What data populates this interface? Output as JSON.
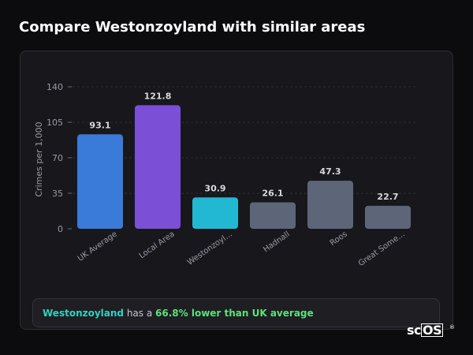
{
  "header": {
    "title": "Compare Westonzoyland with similar areas"
  },
  "chart_data": {
    "type": "bar",
    "ylabel": "Crimes per 1,000",
    "xlabel": "",
    "ylim": [
      0,
      140
    ],
    "yticks": [
      0,
      35,
      70,
      105,
      140
    ],
    "grid": true,
    "categories": [
      "UK Average",
      "Local Area",
      "Westonzoyl...",
      "Hadnall",
      "Roos",
      "Great Some..."
    ],
    "values": [
      93.1,
      121.8,
      30.9,
      26.1,
      47.3,
      22.7
    ],
    "value_labels": [
      "93.1",
      "121.8",
      "30.9",
      "26.1",
      "47.3",
      "22.7"
    ],
    "colors": [
      "#3a7bd9",
      "#7b4fd6",
      "#22b8d1",
      "#5d6678",
      "#5d6678",
      "#5d6678"
    ]
  },
  "summary": {
    "area": "Westonzoyland",
    "middle": " has a ",
    "comparison": "66.8% lower than UK average",
    "area_color": "#33d1c0",
    "comparison_color": "#5ee07a"
  },
  "brand": {
    "prefix": "sc",
    "box": "OS",
    "mark": "®"
  }
}
